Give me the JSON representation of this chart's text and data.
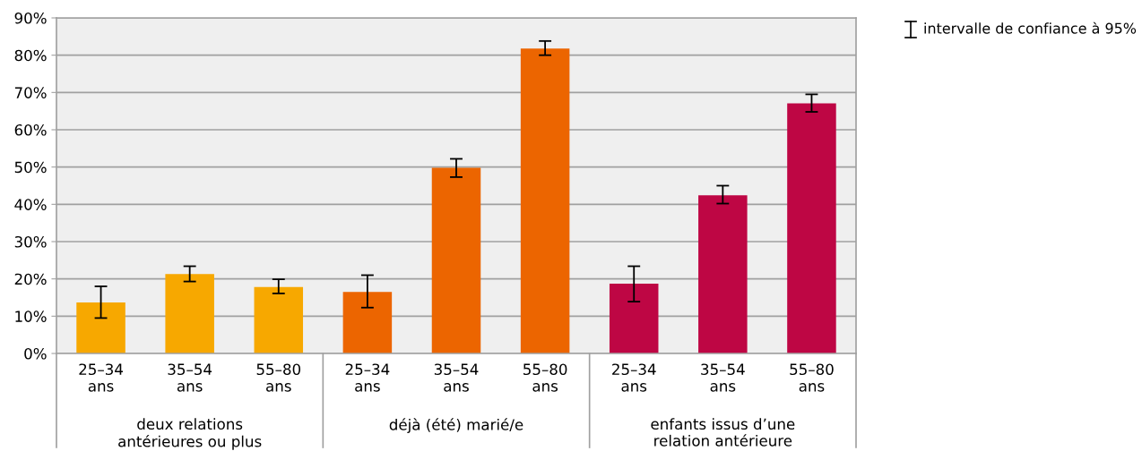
{
  "chart_data": {
    "type": "bar",
    "categories": [
      "25–34\nans",
      "35–54\nans",
      "55–80\nans",
      "25–34\nans",
      "35–54\nans",
      "55–80\nans",
      "25–34\nans",
      "35–54\nans",
      "55–80\nans"
    ],
    "values": [
      13.7,
      21.3,
      17.8,
      16.5,
      49.8,
      81.8,
      18.7,
      42.4,
      67.1
    ],
    "errors": [
      [
        9.5,
        18.0
      ],
      [
        19.3,
        23.4
      ],
      [
        16.1,
        19.9
      ],
      [
        12.3,
        21.0
      ],
      [
        47.3,
        52.2
      ],
      [
        80.0,
        83.8
      ],
      [
        13.9,
        23.4
      ],
      [
        40.2,
        45.0
      ],
      [
        64.8,
        69.5
      ]
    ],
    "colors": [
      "#f7a800",
      "#f7a800",
      "#f7a800",
      "#ec6500",
      "#ec6500",
      "#ec6500",
      "#be0644",
      "#be0644",
      "#be0644"
    ],
    "ylim": [
      0,
      90
    ],
    "yticks": [
      {
        "value": 0,
        "label": "0%"
      },
      {
        "value": 10,
        "label": "10%"
      },
      {
        "value": 20,
        "label": "20%"
      },
      {
        "value": 30,
        "label": "30%"
      },
      {
        "value": 40,
        "label": "40%"
      },
      {
        "value": 50,
        "label": "50%"
      },
      {
        "value": 60,
        "label": "60%"
      },
      {
        "value": 70,
        "label": "70%"
      },
      {
        "value": 80,
        "label": "80%"
      },
      {
        "value": 90,
        "label": "90%"
      }
    ],
    "grid": "y",
    "annotations": [
      "deux relations\nantérieures ou plus",
      "déjà (été) marié/e",
      "enfants issus d’une\nrelation antérieure",
      "intervalle de confiance à 95%"
    ]
  }
}
